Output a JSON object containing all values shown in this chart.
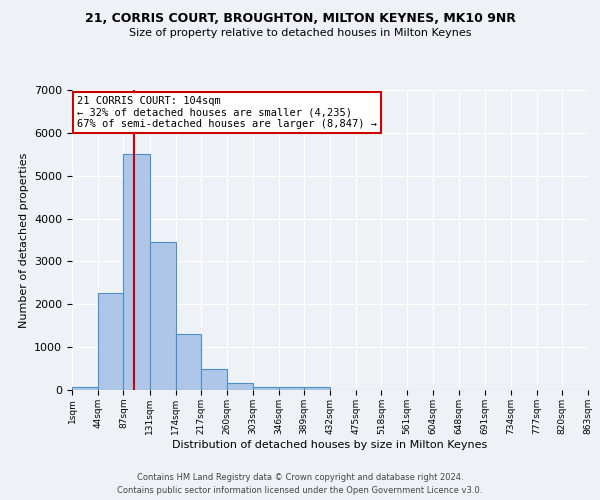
{
  "title1": "21, CORRIS COURT, BROUGHTON, MILTON KEYNES, MK10 9NR",
  "title2": "Size of property relative to detached houses in Milton Keynes",
  "xlabel": "Distribution of detached houses by size in Milton Keynes",
  "ylabel": "Number of detached properties",
  "bin_edges": [
    1,
    44,
    87,
    131,
    174,
    217,
    260,
    303,
    346,
    389,
    432,
    475,
    518,
    561,
    604,
    648,
    691,
    734,
    777,
    820,
    863
  ],
  "bar_heights": [
    80,
    2270,
    5500,
    3450,
    1300,
    480,
    160,
    80,
    80,
    70,
    0,
    0,
    0,
    0,
    0,
    0,
    0,
    0,
    0,
    0
  ],
  "bar_color": "#aec6e8",
  "bar_edge_color": "#4a90c8",
  "property_size": 104,
  "annotation_title": "21 CORRIS COURT: 104sqm",
  "annotation_line1": "← 32% of detached houses are smaller (4,235)",
  "annotation_line2": "67% of semi-detached houses are larger (8,847) →",
  "annotation_box_color": "#ffffff",
  "annotation_box_edge": "#cc0000",
  "redline_color": "#cc0000",
  "ylim": [
    0,
    7000
  ],
  "footer1": "Contains HM Land Registry data © Crown copyright and database right 2024.",
  "footer2": "Contains public sector information licensed under the Open Government Licence v3.0.",
  "bg_color": "#eef2f7",
  "grid_color": "#ffffff"
}
